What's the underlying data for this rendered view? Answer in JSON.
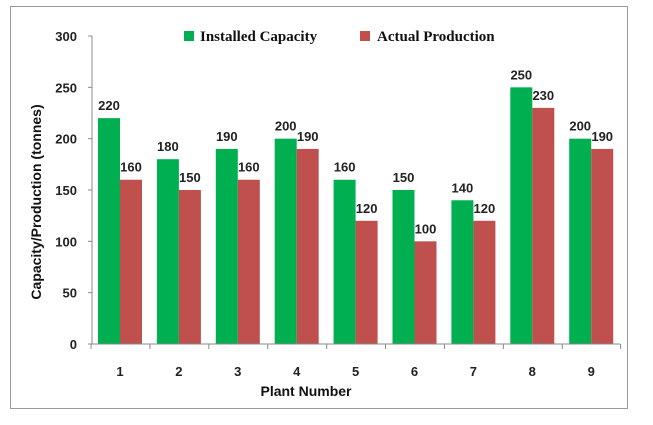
{
  "chart_data": {
    "type": "bar",
    "categories": [
      "1",
      "2",
      "3",
      "4",
      "5",
      "6",
      "7",
      "8",
      "9"
    ],
    "series": [
      {
        "name": "Installed Capacity",
        "color": "#00b050",
        "values": [
          220,
          180,
          190,
          200,
          160,
          150,
          140,
          250,
          200
        ]
      },
      {
        "name": "Actual Production",
        "color": "#c0504d",
        "values": [
          160,
          150,
          160,
          190,
          120,
          100,
          120,
          230,
          190
        ]
      }
    ],
    "xlabel": "Plant Number",
    "ylabel": "Capacity/Production (tonnes)",
    "ylim": [
      0,
      300
    ],
    "yticks": [
      0,
      50,
      100,
      150,
      200,
      250,
      300
    ],
    "grid": false,
    "legend_position": "top"
  }
}
